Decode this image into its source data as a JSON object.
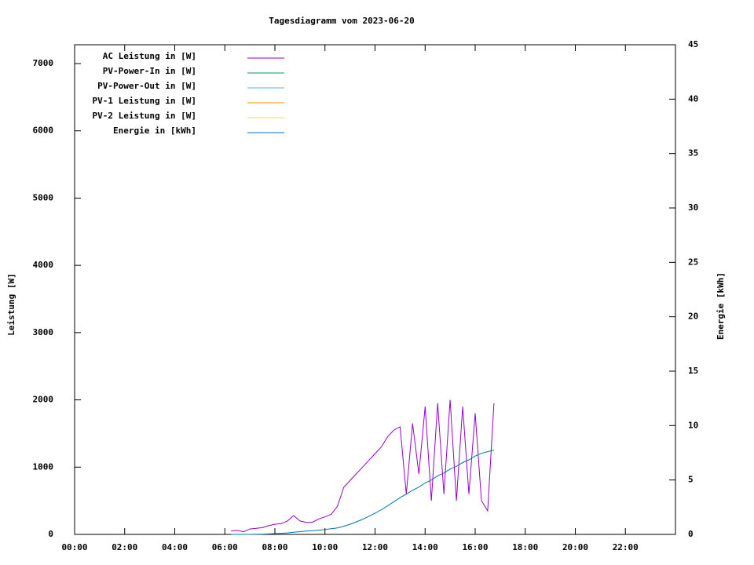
{
  "chart_data": {
    "type": "line",
    "title": "Tagesdiagramm vom 2023-06-20",
    "y_label": "Leistung [W]",
    "y2_label": "Energie [kWh]",
    "x": [
      6.25,
      6.5,
      6.75,
      7.0,
      7.25,
      7.5,
      7.75,
      8.0,
      8.25,
      8.5,
      8.75,
      9.0,
      9.25,
      9.5,
      9.75,
      10.0,
      10.25,
      10.5,
      10.75,
      11.0,
      11.25,
      11.5,
      11.75,
      12.0,
      12.25,
      12.5,
      12.75,
      13.0,
      13.25,
      13.5,
      13.75,
      14.0,
      14.25,
      14.5,
      14.75,
      15.0,
      15.25,
      15.5,
      15.75,
      16.0,
      16.25,
      16.5,
      16.75
    ],
    "xlim": [
      0,
      24
    ],
    "xticks": [
      {
        "value": 0,
        "label": "00:00"
      },
      {
        "value": 2,
        "label": "02:00"
      },
      {
        "value": 4,
        "label": "04:00"
      },
      {
        "value": 6,
        "label": "06:00"
      },
      {
        "value": 8,
        "label": "08:00"
      },
      {
        "value": 10,
        "label": "10:00"
      },
      {
        "value": 12,
        "label": "12:00"
      },
      {
        "value": 14,
        "label": "14:00"
      },
      {
        "value": 16,
        "label": "16:00"
      },
      {
        "value": 18,
        "label": "18:00"
      },
      {
        "value": 20,
        "label": "20:00"
      },
      {
        "value": 22,
        "label": "22:00"
      }
    ],
    "ylim": [
      0,
      7280
    ],
    "yticks": [
      0,
      1000,
      2000,
      3000,
      4000,
      5000,
      6000,
      7000
    ],
    "y2lim": [
      0,
      45
    ],
    "y2ticks": [
      0,
      5,
      10,
      15,
      20,
      25,
      30,
      35,
      40,
      45
    ],
    "grid": false,
    "legend": "top-left",
    "series": [
      {
        "name": "AC Leistung in [W]",
        "color": "#9400d3",
        "values": [
          50,
          60,
          40,
          80,
          90,
          100,
          130,
          150,
          160,
          200,
          280,
          200,
          180,
          180,
          230,
          260,
          300,
          420,
          700,
          800,
          900,
          1000,
          1100,
          1200,
          1300,
          1450,
          1550,
          1600,
          600,
          1650,
          900,
          1900,
          500,
          1950,
          600,
          2000,
          500,
          1900,
          600,
          1800,
          500,
          350,
          1950
        ]
      },
      {
        "name": "PV-Power-In in [W]",
        "color": "#009e73",
        "values": [
          null,
          null,
          null,
          null,
          null,
          null,
          null,
          null,
          null,
          null,
          null,
          null,
          null,
          null,
          null,
          null,
          null,
          null,
          null,
          null,
          null,
          null,
          null,
          null,
          null,
          null,
          null,
          null,
          null,
          null,
          null,
          null,
          null,
          null,
          null,
          null,
          null,
          null,
          null,
          null,
          null,
          null,
          null
        ]
      },
      {
        "name": "PV-Power-Out in [W]",
        "color": "#56b4e9",
        "values": [
          null,
          null,
          null,
          null,
          null,
          null,
          null,
          null,
          null,
          null,
          null,
          null,
          null,
          null,
          null,
          null,
          null,
          null,
          null,
          null,
          null,
          null,
          null,
          null,
          null,
          null,
          null,
          null,
          null,
          null,
          null,
          null,
          null,
          null,
          null,
          null,
          null,
          null,
          null,
          null,
          null,
          null,
          null
        ]
      },
      {
        "name": "PV-1 Leistung in [W]",
        "color": "#e69f00",
        "values": [
          null,
          null,
          null,
          null,
          null,
          null,
          null,
          null,
          null,
          null,
          null,
          null,
          null,
          null,
          null,
          null,
          null,
          null,
          null,
          null,
          null,
          null,
          null,
          null,
          null,
          null,
          null,
          null,
          null,
          null,
          null,
          null,
          null,
          null,
          null,
          null,
          null,
          null,
          null,
          null,
          null,
          null,
          null
        ]
      },
      {
        "name": "PV-2 Leistung in [W]",
        "color": "#f0e442",
        "values": [
          null,
          null,
          null,
          null,
          null,
          null,
          null,
          null,
          null,
          null,
          null,
          null,
          null,
          null,
          null,
          null,
          null,
          null,
          null,
          null,
          null,
          null,
          null,
          null,
          null,
          null,
          null,
          null,
          null,
          null,
          null,
          null,
          null,
          null,
          null,
          null,
          null,
          null,
          null,
          null,
          null,
          null,
          null
        ]
      },
      {
        "name": "Energie in [kWh]",
        "color": "#0072b2",
        "axis": "y2",
        "values": [
          0,
          0,
          0,
          0,
          0.01,
          0.02,
          0.04,
          0.07,
          0.1,
          0.14,
          0.2,
          0.25,
          0.3,
          0.34,
          0.39,
          0.45,
          0.52,
          0.6,
          0.75,
          0.93,
          1.15,
          1.38,
          1.65,
          1.95,
          2.27,
          2.62,
          3.0,
          3.38,
          3.7,
          4.05,
          4.35,
          4.72,
          5.0,
          5.38,
          5.65,
          6.0,
          6.25,
          6.6,
          6.85,
          7.2,
          7.45,
          7.6,
          7.75
        ]
      }
    ]
  }
}
